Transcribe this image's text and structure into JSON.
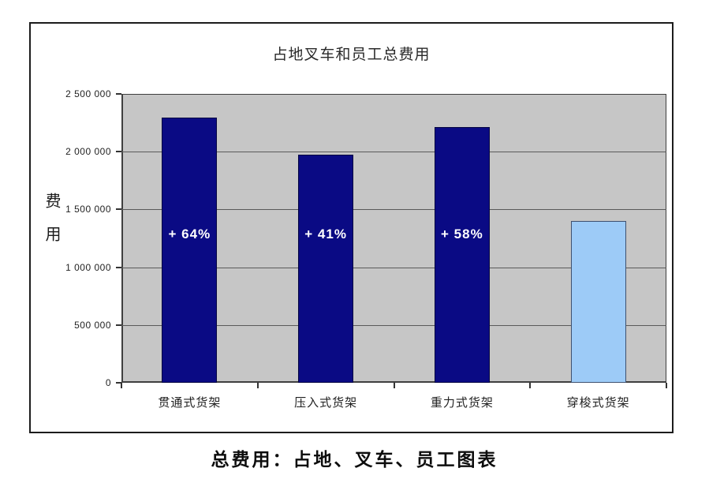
{
  "chart_data": {
    "type": "bar",
    "title": "占地叉车和员工总费用",
    "ylabel": "费用",
    "xlabel": "",
    "caption": "总费用：占地、叉车、员工图表",
    "categories": [
      "贯通式货架",
      "压入式货架",
      "重力式货架",
      "穿梭式货架"
    ],
    "values": [
      2296000,
      1974000,
      2212000,
      1400000
    ],
    "bar_labels": [
      "+ 64%",
      "+ 41%",
      "+ 58%",
      ""
    ],
    "bar_colors": [
      "#0a0a84",
      "#0a0a84",
      "#0a0a84",
      "#9dcbf7"
    ],
    "ylim": [
      0,
      2500000
    ],
    "yticks": [
      {
        "value": 0,
        "label": "0"
      },
      {
        "value": 500000,
        "label": "500 000"
      },
      {
        "value": 1000000,
        "label": "1 000 000"
      },
      {
        "value": 1500000,
        "label": "1 500 000"
      },
      {
        "value": 2000000,
        "label": "2 000 000"
      },
      {
        "value": 2500000,
        "label": "2 500 000"
      }
    ],
    "grid": "horizontal",
    "legend": "none",
    "plot_background": "#c6c6c6",
    "gridline_color": "#5a5a5a",
    "bar_label_color": "#ffffff"
  }
}
